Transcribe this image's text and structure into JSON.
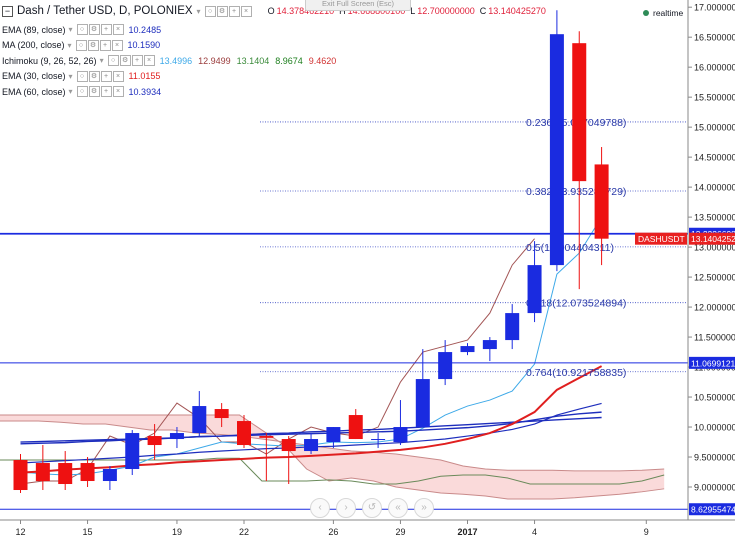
{
  "header": {
    "title": "Dash / Tether USD, D, POLONIEX",
    "collapse_glyph": "−",
    "ohlc": [
      {
        "k": "O",
        "v": "14.378462210"
      },
      {
        "k": "H",
        "v": "14.668800100"
      },
      {
        "k": "L",
        "v": "12.700000000"
      },
      {
        "k": "C",
        "v": "13.140425270"
      }
    ],
    "exit_fullscreen": "Exit Full Screen (Esc)",
    "realtime": "realtime"
  },
  "indicators": [
    {
      "name": "EMA (89, close)",
      "values": [
        "10.2485"
      ],
      "colors": [
        "#1e2ebd"
      ]
    },
    {
      "name": "MA (200, close)",
      "values": [
        "10.1590"
      ],
      "colors": [
        "#1e2ebd"
      ]
    },
    {
      "name": "Ichimoku (9, 26, 52, 26)",
      "values": [
        "13.4996",
        "12.9499",
        "13.1404",
        "8.9674",
        "9.4620"
      ],
      "colors": [
        "#3da9e8",
        "#9a3b3b",
        "#3a8a3a",
        "#1e7f1e",
        "#d03030"
      ]
    },
    {
      "name": "EMA (30, close)",
      "values": [
        "11.0155"
      ],
      "colors": [
        "#e01f1f"
      ]
    },
    {
      "name": "EMA (60, close)",
      "values": [
        "10.3934"
      ],
      "colors": [
        "#1e2ebd"
      ]
    }
  ],
  "icons": {
    "collapse": "minus-square-icon",
    "caret": "chevron-down-icon",
    "buttons": [
      "eye-icon",
      "gear-icon",
      "plus-icon",
      "close-icon"
    ]
  },
  "chart_data": {
    "type": "candlestick",
    "symbol": "DASHUSDT",
    "ylim": [
      8.45,
      17.12
    ],
    "price_axis_labels": [
      "17.0000000",
      "16.5000000",
      "16.0000000",
      "15.5000000",
      "15.0000000",
      "14.5000000",
      "14.0000000",
      "13.5000000",
      "13.0000000",
      "12.5000000",
      "12.0000000",
      "11.5000000",
      "11.0000000",
      "10.5000000",
      "10.0000000",
      "9.5000000",
      "9.0000000"
    ],
    "price_axis_values": [
      17.0,
      16.5,
      16.0,
      15.5,
      15.0,
      14.5,
      14.0,
      13.5,
      13.0,
      12.5,
      12.0,
      11.5,
      11.0,
      10.5,
      10.0,
      9.5,
      9.0
    ],
    "date_labels": [
      {
        "text": "12",
        "i": 0,
        "bold": false
      },
      {
        "text": "15",
        "i": 3,
        "bold": false
      },
      {
        "text": "19",
        "i": 7,
        "bold": false
      },
      {
        "text": "22",
        "i": 10,
        "bold": false
      },
      {
        "text": "26",
        "i": 14,
        "bold": false
      },
      {
        "text": "29",
        "i": 17,
        "bold": false
      },
      {
        "text": "2017",
        "i": 20,
        "bold": true
      },
      {
        "text": "4",
        "i": 23,
        "bold": false
      },
      {
        "text": "9",
        "i": 28,
        "bold": false
      }
    ],
    "candles": [
      {
        "o": 9.45,
        "h": 9.55,
        "l": 8.9,
        "c": 8.95
      },
      {
        "o": 9.4,
        "h": 9.7,
        "l": 8.95,
        "c": 9.1
      },
      {
        "o": 9.4,
        "h": 9.6,
        "l": 8.95,
        "c": 9.05
      },
      {
        "o": 9.4,
        "h": 9.5,
        "l": 9.0,
        "c": 9.1
      },
      {
        "o": 9.1,
        "h": 9.35,
        "l": 8.95,
        "c": 9.3
      },
      {
        "o": 9.3,
        "h": 9.95,
        "l": 9.2,
        "c": 9.9
      },
      {
        "o": 9.85,
        "h": 10.05,
        "l": 9.45,
        "c": 9.7
      },
      {
        "o": 9.8,
        "h": 10.0,
        "l": 9.65,
        "c": 9.9
      },
      {
        "o": 9.9,
        "h": 10.6,
        "l": 9.85,
        "c": 10.35
      },
      {
        "o": 10.3,
        "h": 10.4,
        "l": 10.0,
        "c": 10.15
      },
      {
        "o": 10.1,
        "h": 10.2,
        "l": 9.65,
        "c": 9.7
      },
      {
        "o": 9.85,
        "h": 9.9,
        "l": 9.1,
        "c": 9.82
      },
      {
        "o": 9.8,
        "h": 9.85,
        "l": 9.05,
        "c": 9.6
      },
      {
        "o": 9.6,
        "h": 9.9,
        "l": 9.55,
        "c": 9.8
      },
      {
        "o": 9.75,
        "h": 10.0,
        "l": 9.65,
        "c": 10.0
      },
      {
        "o": 10.2,
        "h": 10.3,
        "l": 9.8,
        "c": 9.8
      },
      {
        "o": 9.8,
        "h": 9.9,
        "l": 9.65,
        "c": 9.8
      },
      {
        "o": 9.75,
        "h": 10.45,
        "l": 9.7,
        "c": 10.0
      },
      {
        "o": 10.0,
        "h": 11.3,
        "l": 10.0,
        "c": 10.8
      },
      {
        "o": 10.8,
        "h": 11.45,
        "l": 10.7,
        "c": 11.25
      },
      {
        "o": 11.25,
        "h": 11.4,
        "l": 11.2,
        "c": 11.35
      },
      {
        "o": 11.3,
        "h": 11.5,
        "l": 11.1,
        "c": 11.45
      },
      {
        "o": 11.45,
        "h": 12.05,
        "l": 11.3,
        "c": 11.9
      },
      {
        "o": 11.9,
        "h": 13.1,
        "l": 11.75,
        "c": 12.7
      },
      {
        "o": 12.7,
        "h": 16.95,
        "l": 12.6,
        "c": 16.55
      },
      {
        "o": 16.4,
        "h": 16.6,
        "l": 12.3,
        "c": 14.1
      },
      {
        "o": 14.37846221,
        "h": 14.6688001,
        "l": 12.7,
        "c": 13.14042527
      }
    ],
    "ema30": [
      9.24,
      9.26,
      9.29,
      9.31,
      9.33,
      9.36,
      9.38,
      9.41,
      9.43,
      9.45,
      9.47,
      9.49,
      9.5,
      9.52,
      9.54,
      9.56,
      9.59,
      9.62,
      9.66,
      9.72,
      9.8,
      9.9,
      10.05,
      10.25,
      10.62,
      10.82,
      11.0155
    ],
    "ema60": [
      9.4,
      9.42,
      9.44,
      9.46,
      9.48,
      9.5,
      9.53,
      9.55,
      9.58,
      9.6,
      9.62,
      9.64,
      9.65,
      9.67,
      9.68,
      9.7,
      9.72,
      9.74,
      9.77,
      9.8,
      9.85,
      9.9,
      9.96,
      10.05,
      10.2,
      10.3,
      10.3934
    ],
    "ema89": [
      9.75,
      9.76,
      9.77,
      9.78,
      9.79,
      9.8,
      9.81,
      9.82,
      9.84,
      9.85,
      9.86,
      9.87,
      9.88,
      9.89,
      9.9,
      9.91,
      9.92,
      9.93,
      9.95,
      9.97,
      9.99,
      10.02,
      10.06,
      10.12,
      10.18,
      10.22,
      10.2485
    ],
    "ma200": [
      9.72,
      9.73,
      9.74,
      9.76,
      9.77,
      9.79,
      9.8,
      9.82,
      9.84,
      9.85,
      9.87,
      9.89,
      9.9,
      9.92,
      9.93,
      9.95,
      9.96,
      9.98,
      10.0,
      10.02,
      10.04,
      10.06,
      10.08,
      10.1,
      10.12,
      10.14,
      10.159
    ],
    "tenkan": [
      9.25,
      9.22,
      9.2,
      9.22,
      9.28,
      9.35,
      9.5,
      9.55,
      9.65,
      9.75,
      9.72,
      9.7,
      9.68,
      9.7,
      9.75,
      9.74,
      9.75,
      9.8,
      9.98,
      10.2,
      10.35,
      10.45,
      10.6,
      11.05,
      12.55,
      12.9,
      13.4996
    ],
    "kijun": [
      9.3,
      9.3,
      9.28,
      9.28,
      9.3,
      9.32,
      9.4,
      9.48,
      9.55,
      9.6,
      9.62,
      9.62,
      9.62,
      9.62,
      9.63,
      9.64,
      9.65,
      9.66,
      9.72,
      9.85,
      10.0,
      10.15,
      10.35,
      10.55,
      12.0,
      12.5,
      12.9499
    ],
    "chikou": [
      9.05,
      9.1,
      9.1,
      9.3,
      9.85,
      9.7,
      9.9,
      10.4,
      10.15,
      9.75,
      9.75,
      9.55,
      9.8,
      10.0,
      9.9,
      9.85,
      10.0,
      10.75,
      11.25,
      11.35,
      11.45,
      11.9,
      12.7,
      13.1404
    ],
    "span_a": [
      10.1,
      10.1,
      10.1,
      10.08,
      10.05,
      10.05,
      10.0,
      9.95,
      9.95,
      9.9,
      9.88,
      9.85,
      9.8,
      9.75,
      9.7,
      9.65,
      9.6,
      9.58,
      9.55,
      9.5,
      9.45,
      9.35,
      9.3,
      9.28,
      9.28,
      9.28,
      9.27,
      9.27,
      9.27,
      9.28,
      9.3
    ],
    "span_b": [
      10.2,
      10.2,
      10.2,
      10.2,
      10.2,
      10.2,
      10.2,
      10.2,
      10.2,
      10.2,
      10.2,
      10.2,
      9.95,
      9.7,
      9.3,
      9.1,
      9.15,
      9.1,
      9.0,
      8.95,
      8.9,
      8.88,
      8.85,
      8.8,
      8.8,
      8.8,
      8.82,
      8.85,
      8.88,
      8.92,
      8.97
    ],
    "lagging": [
      9.45,
      9.45,
      9.45,
      9.45,
      9.45,
      9.45,
      9.45,
      9.45,
      9.45,
      9.45,
      9.48,
      9.48,
      9.1,
      9.1,
      9.1,
      9.12,
      9.1,
      9.05,
      9.05,
      9.1,
      9.18,
      9.2,
      9.2,
      9.15,
      9.05,
      9.05,
      9.05,
      9.05,
      9.05,
      9.1,
      9.2
    ],
    "fib_levels": [
      {
        "ratio": "0.236",
        "value": 15.087049788,
        "label": "0.236(15.087049788)"
      },
      {
        "ratio": "0.382",
        "value": 13.935283729,
        "label": "0.382(13.935283729)"
      },
      {
        "ratio": "0.5",
        "value": 13.004404311,
        "label": "0.5(13.004404311)"
      },
      {
        "ratio": "0.618",
        "value": 12.073524894,
        "label": "0.618(12.073524894)"
      },
      {
        "ratio": "0.764",
        "value": 10.921758835,
        "label": "0.764(10.921758835)"
      }
    ],
    "hlines": [
      13.2226698,
      11.0699121,
      8.62955474
    ],
    "hline_labels": [
      "13.2226698",
      "11.0699121",
      "8.62955474"
    ],
    "last_price_label": "13.1404252",
    "last_price": 13.1404252,
    "series_colors": {
      "up": "#1a2be0",
      "down": "#ee1111",
      "ema30": "#e01f1f",
      "ema60": "#1e2ebd",
      "ema89": "#1e2ebd",
      "ma200": "#1e2ebd",
      "tenkan": "#3da9e8",
      "kijun": "#a35555",
      "cloud": "#f9d4d4",
      "cloud_line": "#c98a8a",
      "span_b": "#6a8a5a"
    }
  },
  "navigation": [
    "chevron-left-icon",
    "chevron-right-icon",
    "reset-icon",
    "zoom-left-icon",
    "zoom-right-icon"
  ],
  "navigation_glyphs": [
    "‹",
    "›",
    "↺",
    "«",
    "»"
  ]
}
